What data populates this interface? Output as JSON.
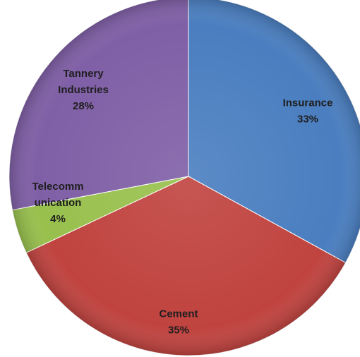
{
  "chart_data": {
    "type": "pie",
    "start_angle_deg": 0,
    "direction": "clockwise",
    "slices": [
      {
        "label_lines": [
          "Insurance",
          "33%"
        ],
        "name": "Insurance",
        "value": 33,
        "color": "#4a7ec0"
      },
      {
        "label_lines": [
          "Cement",
          "35%"
        ],
        "name": "Cement",
        "value": 35,
        "color": "#c0433f"
      },
      {
        "label_lines": [
          "Telecomm",
          "unication",
          "4%"
        ],
        "name": "Telecommunication",
        "value": 4,
        "color": "#98c04d"
      },
      {
        "label_lines": [
          "Tannery",
          "Industries",
          "28%"
        ],
        "name": "Tannery Industries",
        "value": 28,
        "color": "#7f5fa6"
      }
    ]
  }
}
